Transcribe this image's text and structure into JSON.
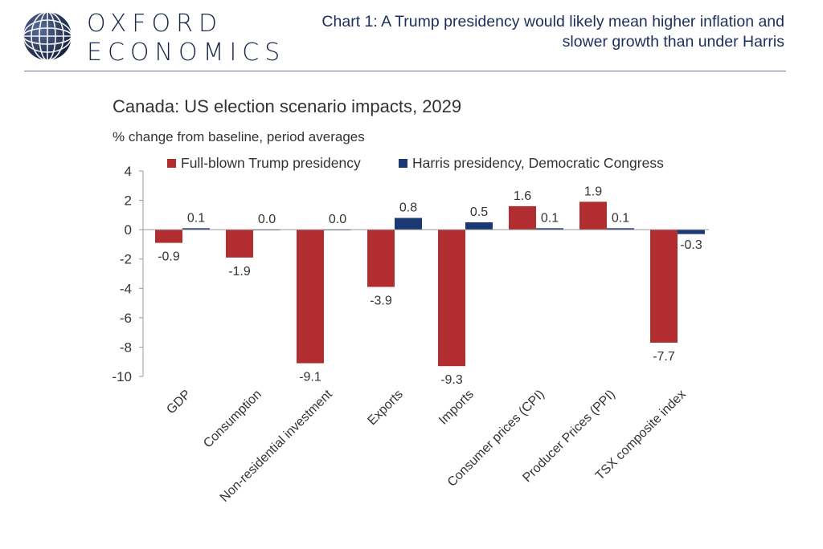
{
  "header": {
    "logo_line1": "OXFORD",
    "logo_line2": "ECONOMICS",
    "headline_line1": "Chart 1: A Trump presidency would likely mean higher inflation and",
    "headline_line2": "slower growth than under Harris"
  },
  "colors": {
    "trump": "#b22d2f",
    "harris": "#1b3a73",
    "brand": "#1b2a4a",
    "axis": "#999999"
  },
  "chart_data": {
    "type": "bar",
    "title": "Canada: US election scenario impacts, 2029",
    "subtitle": "% change from baseline, period averages",
    "xlabel": "",
    "ylabel": "",
    "ylim": [
      -10,
      4
    ],
    "yticks": [
      "4",
      "2",
      "0",
      "-2",
      "-4",
      "-6",
      "-8",
      "-10"
    ],
    "ytick_values": [
      4,
      2,
      0,
      -2,
      -4,
      -6,
      -8,
      -10
    ],
    "grid": false,
    "legend_position": "top",
    "categories": [
      "GDP",
      "Consumption",
      "Non-residential investment",
      "Exports",
      "Imports",
      "Consumer prices (CPI)",
      "Producer Prices (PPI)",
      "TSX composite index"
    ],
    "series": [
      {
        "name": "Full-blown Trump presidency",
        "values": [
          -0.9,
          -1.9,
          -9.1,
          -3.9,
          -9.3,
          1.6,
          1.9,
          -7.7
        ],
        "labels": [
          "-0.9",
          "-1.9",
          "-9.1",
          "-3.9",
          "-9.3",
          "1.6",
          "1.9",
          "-7.7"
        ]
      },
      {
        "name": "Harris presidency, Democratic Congress",
        "values": [
          0.1,
          0.0,
          0.0,
          0.8,
          0.5,
          0.1,
          0.1,
          -0.3
        ],
        "labels": [
          "0.1",
          "0.0",
          "0.0",
          "0.8",
          "0.5",
          "0.1",
          "0.1",
          "-0.3"
        ]
      }
    ]
  }
}
